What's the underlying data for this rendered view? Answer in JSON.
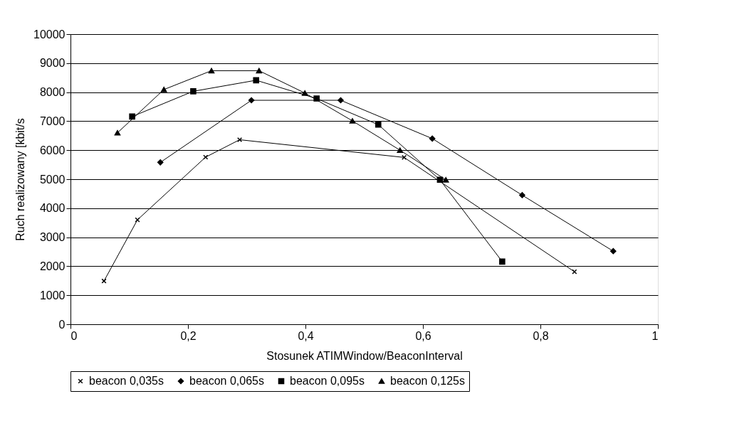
{
  "chart_data": {
    "type": "line",
    "xlabel": "Stosunek ATIMWindow/BeaconInterval",
    "ylabel": "Ruch realizowany [kbit/s",
    "xlim": [
      0,
      1
    ],
    "xticks": [
      0,
      {
        "value": 0.2,
        "label": "0,2"
      },
      {
        "value": 0.4,
        "label": "0,4"
      },
      {
        "value": 0.6,
        "label": "0,6"
      },
      {
        "value": 0.8,
        "label": "0,8"
      },
      1
    ],
    "ylim": [
      0,
      10000
    ],
    "yticks": [
      0,
      1000,
      2000,
      3000,
      4000,
      5000,
      6000,
      7000,
      8000,
      9000,
      10000
    ],
    "grid": "y",
    "legend": "bottom",
    "line_style": "solid",
    "series": [
      {
        "name": "beacon 0,035s",
        "color": "#000000",
        "marker": "cross",
        "x": [
          0.057,
          0.114,
          0.23,
          0.288,
          0.568,
          0.858
        ],
        "values": [
          1490,
          3600,
          5760,
          6360,
          5750,
          1810
        ]
      },
      {
        "name": "beacon 0,065s",
        "color": "#000000",
        "marker": "diamond",
        "x": [
          0.153,
          0.308,
          0.46,
          0.616,
          0.769,
          0.924
        ],
        "values": [
          5580,
          7720,
          7720,
          6400,
          4450,
          2520
        ]
      },
      {
        "name": "beacon 0,095s",
        "color": "#000000",
        "marker": "square",
        "x": [
          0.105,
          0.209,
          0.316,
          0.419,
          0.524,
          0.629,
          0.735
        ],
        "values": [
          7160,
          8030,
          8410,
          7780,
          6880,
          4980,
          2160
        ]
      },
      {
        "name": "beacon 0,125s",
        "color": "#000000",
        "marker": "triangle",
        "x": [
          0.08,
          0.159,
          0.24,
          0.321,
          0.399,
          0.48,
          0.561,
          0.639
        ],
        "values": [
          6600,
          8090,
          8740,
          8740,
          7970,
          7010,
          6000,
          4980
        ]
      }
    ]
  }
}
